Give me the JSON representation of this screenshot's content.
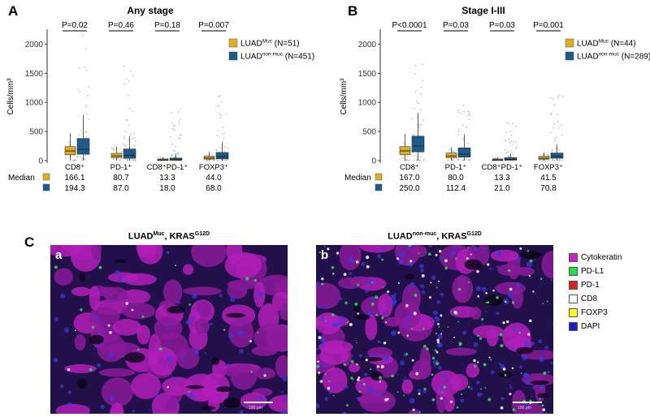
{
  "panels": {
    "A": {
      "letter": "A",
      "title": "Any stage"
    },
    "B": {
      "letter": "B",
      "title": "Stage I-III"
    },
    "C": {
      "letter": "C"
    }
  },
  "chart_data": [
    {
      "type": "box",
      "panel": "A",
      "title": "Any stage",
      "ylabel": "Cells/mm³",
      "ylim": [
        0,
        2200
      ],
      "yticks": [
        0,
        500,
        1000,
        1500,
        2000
      ],
      "categories": [
        "CD8⁺",
        "PD-1⁺",
        "CD8⁺PD-1⁺",
        "FOXP3⁺"
      ],
      "pvalues": [
        "P=0.02",
        "P=0.46",
        "P=0.18",
        "P=0.007"
      ],
      "series": [
        {
          "name": "LUAD",
          "sup": "Muc",
          "n": "(N=51)",
          "color": "#E3AE1E",
          "boxes": [
            {
              "q1": 100,
              "median": 166.1,
              "q3": 240,
              "lo": 0,
              "hi": 470
            },
            {
              "q1": 50,
              "median": 80.7,
              "q3": 125,
              "lo": 0,
              "hi": 240
            },
            {
              "q1": 3,
              "median": 13.3,
              "q3": 28,
              "lo": 0,
              "hi": 60
            },
            {
              "q1": 25,
              "median": 44,
              "q3": 75,
              "lo": 0,
              "hi": 150
            }
          ],
          "medians": [
            "166.1",
            "80.7",
            "13.3",
            "44.0"
          ]
        },
        {
          "name": "LUAD",
          "sup": "non-muc",
          "n": "(N=451)",
          "color": "#1B5C8D",
          "boxes": [
            {
              "q1": 110,
              "median": 194.3,
              "q3": 380,
              "lo": 0,
              "hi": 780
            },
            {
              "q1": 40,
              "median": 87,
              "q3": 200,
              "lo": 0,
              "hi": 420
            },
            {
              "q1": 6,
              "median": 18,
              "q3": 45,
              "lo": 0,
              "hi": 110
            },
            {
              "q1": 30,
              "median": 68,
              "q3": 140,
              "lo": 0,
              "hi": 300
            }
          ],
          "outlier_max": [
            2150,
            1620,
            880,
            1110
          ],
          "medians": [
            "194.3",
            "87.0",
            "18.0",
            "68.0"
          ]
        }
      ],
      "median_label": "Median"
    },
    {
      "type": "box",
      "panel": "B",
      "title": "Stage I-III",
      "ylabel": "Cells/mm³",
      "ylim": [
        0,
        2200
      ],
      "yticks": [
        0,
        500,
        1000,
        1500,
        2000
      ],
      "categories": [
        "CD8⁺",
        "PD-1⁺",
        "CD8⁺PD-1⁺",
        "FOXP3⁺"
      ],
      "pvalues": [
        "P<0.0001",
        "P=0.03",
        "P=0.03",
        "P=0.001"
      ],
      "series": [
        {
          "name": "LUAD",
          "sup": "Muc",
          "n": "(N=44)",
          "color": "#E3AE1E",
          "boxes": [
            {
              "q1": 100,
              "median": 167,
              "q3": 240,
              "lo": 0,
              "hi": 460
            },
            {
              "q1": 50,
              "median": 80,
              "q3": 130,
              "lo": 0,
              "hi": 230
            },
            {
              "q1": 3,
              "median": 13.3,
              "q3": 28,
              "lo": 0,
              "hi": 60
            },
            {
              "q1": 25,
              "median": 41.5,
              "q3": 75,
              "lo": 0,
              "hi": 140
            }
          ],
          "medians": [
            "167.0",
            "80.0",
            "13.3",
            "41.5"
          ]
        },
        {
          "name": "LUAD",
          "sup": "non-muc",
          "n": "(N=289)",
          "color": "#1B5C8D",
          "boxes": [
            {
              "q1": 150,
              "median": 250,
              "q3": 420,
              "lo": 0,
              "hi": 820
            },
            {
              "q1": 60,
              "median": 112.4,
              "q3": 220,
              "lo": 0,
              "hi": 450
            },
            {
              "q1": 8,
              "median": 21,
              "q3": 50,
              "lo": 0,
              "hi": 120
            },
            {
              "q1": 40,
              "median": 70.8,
              "q3": 130,
              "lo": 0,
              "hi": 280
            }
          ],
          "outlier_max": [
            1650,
            950,
            650,
            1120
          ],
          "medians": [
            "250.0",
            "112.4",
            "21.0",
            "70.8"
          ]
        }
      ],
      "median_label": "Median"
    }
  ],
  "panel_c": {
    "images": [
      {
        "letter": "a",
        "title_main": "LUAD",
        "title_sup": "Muc",
        "title_gene": ", KRAS",
        "title_gene_sup": "G12D",
        "scale_text": "100 µm"
      },
      {
        "letter": "b",
        "title_main": "LUAD",
        "title_sup": "non-muc",
        "title_gene": ", KRAS",
        "title_gene_sup": "G12D",
        "scale_text": "100 µm"
      }
    ],
    "legend": [
      {
        "label": "Cytokeratin",
        "color": "#CC22CC"
      },
      {
        "label": "PD-L1",
        "color": "#22DD44"
      },
      {
        "label": "PD-1",
        "color": "#DD2222"
      },
      {
        "label": "CD8",
        "color": "#FFFFFF"
      },
      {
        "label": "FOXP3",
        "color": "#FFFF22"
      },
      {
        "label": "DAPI",
        "color": "#1A1ACC"
      }
    ]
  }
}
